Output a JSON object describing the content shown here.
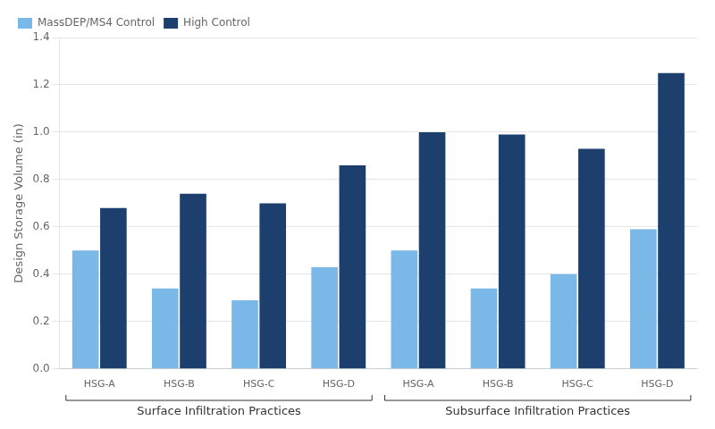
{
  "chart_data": {
    "type": "bar",
    "ylabel": "Design Storage Volume (in)",
    "categories": [
      "HSG-A",
      "HSG-B",
      "HSG-C",
      "HSG-D",
      "HSG-A",
      "HSG-B",
      "HSG-C",
      "HSG-D"
    ],
    "series": [
      {
        "name": "MassDEP/MS4 Control",
        "color": "#7AB8E8",
        "values": [
          0.5,
          0.34,
          0.29,
          0.43,
          0.5,
          0.34,
          0.4,
          0.59
        ]
      },
      {
        "name": "High Control",
        "color": "#1C3F6E",
        "values": [
          0.68,
          0.74,
          0.7,
          0.86,
          1.0,
          0.99,
          0.93,
          1.25
        ]
      }
    ],
    "annotations": [
      "Surface Infiltration Practices",
      "Subsurface Infiltration Practices"
    ],
    "ylim": [
      0,
      1.4
    ],
    "yticks": [
      {
        "value": 0,
        "label": "0.0"
      },
      0.2,
      0.4,
      0.6,
      0.8,
      {
        "value": 1.0,
        "label": "1.0"
      },
      1.2,
      1.4
    ],
    "grid": true,
    "legend": "upper left"
  }
}
